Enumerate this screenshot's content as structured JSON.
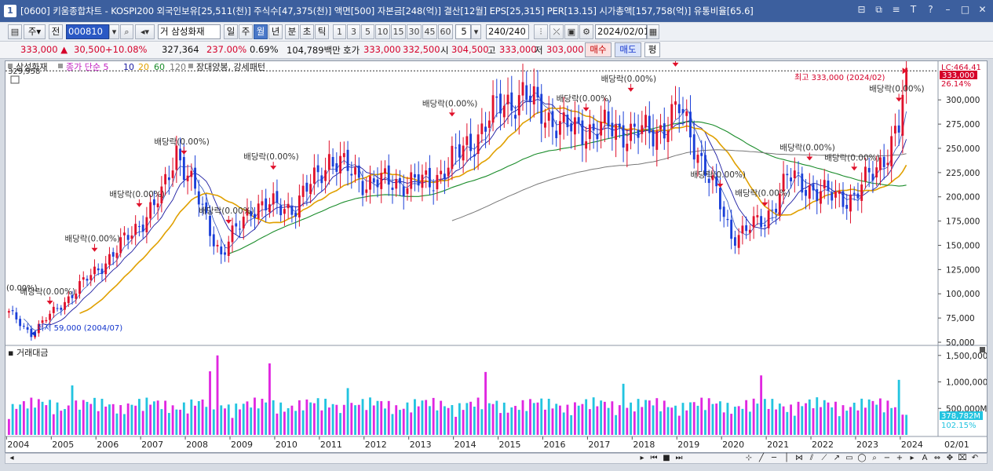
{
  "window": {
    "title": "[0600] 키움종합차트 - KOSPI200 외국인보유[25,511(천)] 주식수[47,375(천)] 액면[500] 자본금[248(억)] 결산[12월] EPS[25,315] PER[13.15] 시가총액[157,758(억)] 유통비율[65.6]",
    "app_icon": "1"
  },
  "toolbar": {
    "mode_options": [
      "주",
      "전"
    ],
    "code": "000810",
    "stock_name": "삼성화재",
    "stock_prefix": "거",
    "periods": [
      "일",
      "주",
      "월",
      "년",
      "분",
      "초",
      "틱"
    ],
    "active_period": "월",
    "intervals": [
      "1",
      "3",
      "5",
      "10",
      "15",
      "30",
      "45",
      "60"
    ],
    "interval_value": "5",
    "count": "240",
    "count_total": "/240",
    "date": "2024/02/01"
  },
  "quote": {
    "price": "333,000",
    "change": "30,500",
    "change_pct": "+10.08%",
    "volume": "327,364",
    "volume_pct": "237.00%",
    "turnover": "0.69%",
    "amount": "104,789백만",
    "ask_label": "호가",
    "ask1": "333,000",
    "ask2": "332,500",
    "open_label": "시",
    "open": "304,500",
    "high_label": "고",
    "high": "333,000",
    "low_label": "저",
    "low": "303,000",
    "buy": "매수",
    "sell": "매도",
    "flat": "평"
  },
  "legend": {
    "name": "삼성화재",
    "ma_prefix": "종가 단순 5",
    "ma10": "10",
    "ma20": "20",
    "ma60": "60",
    "ma120": "120",
    "pattern": "장대양봉, 강세패턴",
    "colors": {
      "ma5": "#3355bb",
      "ma10": "#1a1aa0",
      "ma20": "#e0a000",
      "ma60": "#1a8c2a",
      "ma120": "#777777"
    }
  },
  "price_panel": {
    "top_label": "329,958",
    "lc_label": "LC:464.41",
    "last_price_tag": "333,000",
    "last_pct_tag": "26.14%",
    "high_annotation": "최고 333,000 (2024/02)",
    "low_annotation": "최저 59,000 (2004/07)",
    "dividend_label": "배당락(0.00%)",
    "dividend_left_edge": "(0.00%)",
    "y_ticks": [
      "300,000",
      "275,000",
      "250,000",
      "225,000",
      "200,000",
      "175,000",
      "150,000",
      "125,000",
      "100,000",
      "75,000",
      "50,000"
    ]
  },
  "volume_panel": {
    "title": "거래대금",
    "y_ticks": [
      "1,500,000M",
      "1,000,000M",
      "500,000M"
    ],
    "last_tag": "378,782M",
    "last_pct": "102.15%",
    "bar_colors": [
      "#e027e0",
      "#22c4e0"
    ]
  },
  "x_axis": {
    "years": [
      "2004",
      "2005",
      "2006",
      "2007",
      "2008",
      "2009",
      "2010",
      "2011",
      "2012",
      "2013",
      "2014",
      "2015",
      "2016",
      "2017",
      "2018",
      "2019",
      "2020",
      "2021",
      "2022",
      "2023",
      "2024"
    ],
    "right_label": "02/01"
  },
  "chart_data": {
    "type": "candlestick",
    "title": "삼성화재 월봉",
    "x_range": [
      "2004/01",
      "2024/02"
    ],
    "ylim": [
      50000,
      335000
    ],
    "monthly_close_anchors": [
      {
        "date": "2004/01",
        "close": 80000
      },
      {
        "date": "2004/07",
        "close": 59000
      },
      {
        "date": "2005/06",
        "close": 100000
      },
      {
        "date": "2006/06",
        "close": 145000
      },
      {
        "date": "2007/06",
        "close": 200000
      },
      {
        "date": "2007/10",
        "close": 250000
      },
      {
        "date": "2008/10",
        "close": 140000
      },
      {
        "date": "2009/06",
        "close": 190000
      },
      {
        "date": "2010/06",
        "close": 190000
      },
      {
        "date": "2011/03",
        "close": 240000
      },
      {
        "date": "2012/01",
        "close": 215000
      },
      {
        "date": "2013/06",
        "close": 215000
      },
      {
        "date": "2014/06",
        "close": 260000
      },
      {
        "date": "2015/01",
        "close": 295000
      },
      {
        "date": "2015/07",
        "close": 305000
      },
      {
        "date": "2016/06",
        "close": 270000
      },
      {
        "date": "2017/06",
        "close": 270000
      },
      {
        "date": "2018/06",
        "close": 265000
      },
      {
        "date": "2019/01",
        "close": 290000
      },
      {
        "date": "2019/08",
        "close": 230000
      },
      {
        "date": "2020/03",
        "close": 160000
      },
      {
        "date": "2020/12",
        "close": 175000
      },
      {
        "date": "2021/06",
        "close": 220000
      },
      {
        "date": "2022/06",
        "close": 200000
      },
      {
        "date": "2022/12",
        "close": 200000
      },
      {
        "date": "2023/06",
        "close": 230000
      },
      {
        "date": "2023/12",
        "close": 270000
      },
      {
        "date": "2024/02",
        "close": 333000
      }
    ],
    "high": {
      "value": 333000,
      "date": "2024/02"
    },
    "low": {
      "value": 59000,
      "date": "2004/07"
    },
    "volume_ylim": [
      0,
      1600000
    ]
  }
}
